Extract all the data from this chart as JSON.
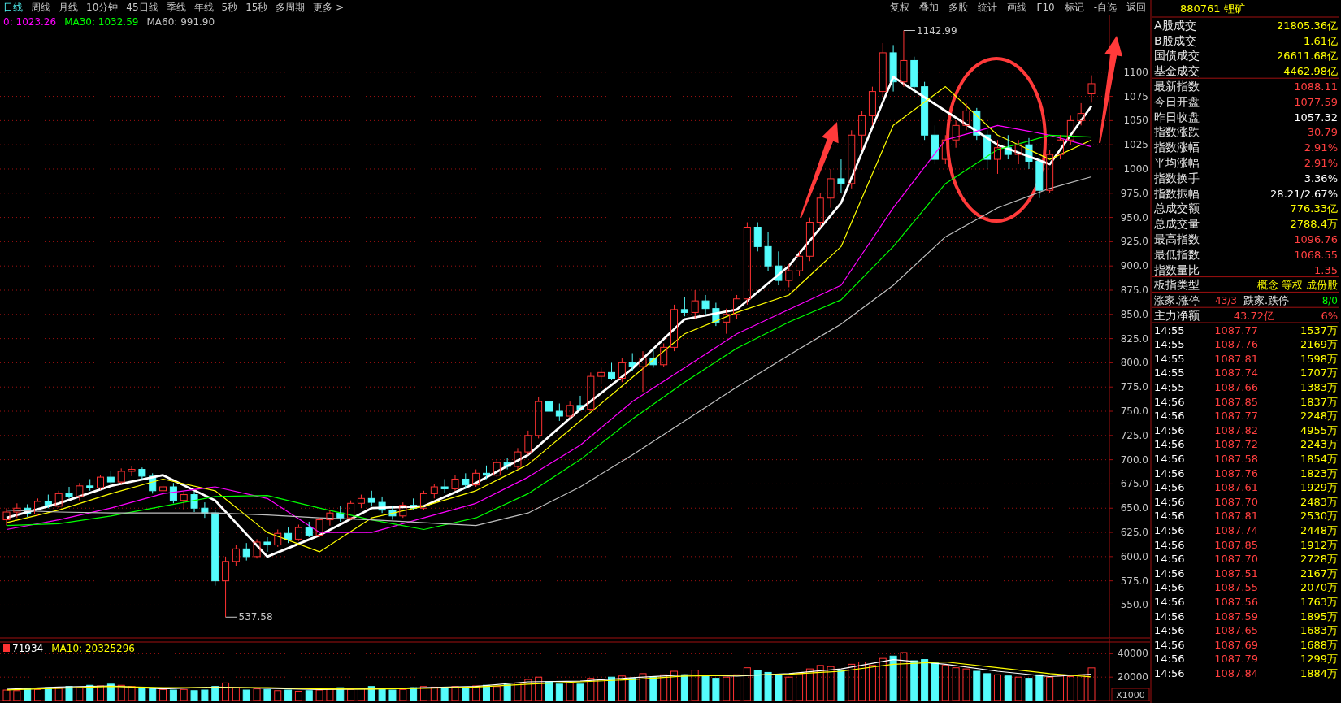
{
  "chart_data": [
    {
      "type": "candlestick",
      "categories": [
        null,
        null,
        null,
        null,
        null,
        null,
        null,
        null,
        null,
        null,
        null,
        null,
        null,
        null,
        null,
        null,
        null,
        null,
        null,
        null,
        null,
        null,
        null,
        null,
        null,
        null,
        null,
        null,
        null,
        null,
        null,
        null,
        null,
        null,
        null,
        null,
        null,
        null,
        null,
        null,
        null,
        null,
        null,
        null,
        null,
        null,
        null,
        null,
        null,
        null,
        null,
        null,
        null,
        null,
        null,
        null,
        null,
        null,
        null,
        null,
        null,
        null,
        null,
        null,
        null,
        null,
        null,
        null,
        null,
        null,
        null,
        null,
        null,
        null,
        null,
        null,
        null,
        null,
        null,
        null,
        null,
        null,
        null,
        null,
        null,
        null,
        null,
        null,
        null,
        null,
        null,
        null,
        null,
        null,
        null,
        null,
        null,
        null,
        null,
        null,
        null,
        null,
        null,
        null,
        null
      ],
      "ohlc": [
        [
          638,
          650,
          632,
          646
        ],
        [
          646,
          655,
          640,
          650
        ],
        [
          650,
          654,
          641,
          644
        ],
        [
          644,
          660,
          642,
          657
        ],
        [
          657,
          664,
          650,
          652
        ],
        [
          652,
          668,
          650,
          665
        ],
        [
          665,
          672,
          660,
          662
        ],
        [
          662,
          676,
          658,
          673
        ],
        [
          673,
          680,
          668,
          671
        ],
        [
          671,
          684,
          669,
          682
        ],
        [
          682,
          688,
          674,
          677
        ],
        [
          677,
          691,
          675,
          688
        ],
        [
          688,
          693,
          683,
          690
        ],
        [
          690,
          692,
          680,
          683
        ],
        [
          683,
          686,
          665,
          668
        ],
        [
          668,
          674,
          662,
          672
        ],
        [
          672,
          676,
          655,
          658
        ],
        [
          658,
          668,
          648,
          664
        ],
        [
          664,
          667,
          646,
          650
        ],
        [
          650,
          656,
          640,
          645
        ],
        [
          645,
          648,
          570,
          575
        ],
        [
          575,
          600,
          537.58,
          595
        ],
        [
          595,
          612,
          590,
          608
        ],
        [
          608,
          614,
          596,
          600
        ],
        [
          600,
          618,
          598,
          615
        ],
        [
          615,
          620,
          605,
          612
        ],
        [
          612,
          628,
          610,
          624
        ],
        [
          624,
          630,
          614,
          618
        ],
        [
          618,
          633,
          616,
          630
        ],
        [
          630,
          636,
          620,
          622
        ],
        [
          622,
          640,
          620,
          638
        ],
        [
          638,
          648,
          632,
          645
        ],
        [
          645,
          652,
          636,
          640
        ],
        [
          640,
          658,
          638,
          655
        ],
        [
          655,
          664,
          650,
          660
        ],
        [
          660,
          668,
          652,
          656
        ],
        [
          656,
          662,
          645,
          648
        ],
        [
          648,
          652,
          638,
          642
        ],
        [
          642,
          656,
          640,
          653
        ],
        [
          653,
          660,
          648,
          650
        ],
        [
          650,
          668,
          648,
          665
        ],
        [
          665,
          675,
          660,
          672
        ],
        [
          672,
          680,
          666,
          670
        ],
        [
          670,
          684,
          668,
          680
        ],
        [
          680,
          686,
          670,
          674
        ],
        [
          674,
          690,
          672,
          686
        ],
        [
          686,
          694,
          680,
          684
        ],
        [
          684,
          700,
          682,
          697
        ],
        [
          697,
          702,
          690,
          693
        ],
        [
          693,
          712,
          690,
          708
        ],
        [
          708,
          730,
          705,
          725
        ],
        [
          725,
          765,
          722,
          760
        ],
        [
          760,
          768,
          745,
          750
        ],
        [
          750,
          758,
          740,
          745
        ],
        [
          745,
          760,
          743,
          756
        ],
        [
          756,
          766,
          750,
          752
        ],
        [
          752,
          790,
          750,
          786
        ],
        [
          786,
          795,
          778,
          790
        ],
        [
          790,
          800,
          782,
          784
        ],
        [
          784,
          805,
          780,
          800
        ],
        [
          800,
          810,
          792,
          796
        ],
        [
          796,
          812,
          770,
          805
        ],
        [
          805,
          815,
          795,
          798
        ],
        [
          798,
          820,
          796,
          816
        ],
        [
          816,
          860,
          812,
          855
        ],
        [
          855,
          868,
          848,
          852
        ],
        [
          852,
          875,
          846,
          864
        ],
        [
          864,
          870,
          850,
          856
        ],
        [
          856,
          862,
          838,
          842
        ],
        [
          842,
          856,
          830,
          850
        ],
        [
          850,
          870,
          845,
          866
        ],
        [
          866,
          945,
          860,
          940
        ],
        [
          940,
          945,
          915,
          920
        ],
        [
          920,
          935,
          895,
          900
        ],
        [
          900,
          915,
          880,
          885
        ],
        [
          885,
          902,
          878,
          895
        ],
        [
          895,
          915,
          890,
          910
        ],
        [
          910,
          950,
          905,
          945
        ],
        [
          945,
          975,
          940,
          970
        ],
        [
          970,
          1000,
          960,
          990
        ],
        [
          990,
          1010,
          975,
          985
        ],
        [
          985,
          1040,
          980,
          1035
        ],
        [
          1035,
          1060,
          1020,
          1055
        ],
        [
          1055,
          1085,
          1045,
          1080
        ],
        [
          1080,
          1130,
          1075,
          1120
        ],
        [
          1120,
          1128,
          1080,
          1090
        ],
        [
          1090,
          1142.99,
          1085,
          1112
        ],
        [
          1112,
          1116,
          1080,
          1085
        ],
        [
          1085,
          1090,
          1030,
          1035
        ],
        [
          1035,
          1045,
          1005,
          1010
        ],
        [
          1010,
          1035,
          1005,
          1030
        ],
        [
          1030,
          1050,
          1022,
          1045
        ],
        [
          1045,
          1068,
          1040,
          1060
        ],
        [
          1060,
          1063,
          1030,
          1035
        ],
        [
          1035,
          1040,
          1000,
          1010
        ],
        [
          1010,
          1030,
          995,
          1022
        ],
        [
          1022,
          1035,
          1010,
          1015
        ],
        [
          1015,
          1030,
          1005,
          1025
        ],
        [
          1025,
          1032,
          1000,
          1008
        ],
        [
          1008,
          1012,
          970,
          978
        ],
        [
          978,
          1020,
          975,
          1015
        ],
        [
          1015,
          1035,
          1010,
          1030
        ],
        [
          1030,
          1055,
          1025,
          1050
        ],
        [
          1050,
          1068,
          1045,
          1057.32
        ],
        [
          1077.59,
          1096.76,
          1068.55,
          1088.11
        ]
      ],
      "series": [
        {
          "type": "line",
          "color": "#ffffff",
          "values": [
            640,
            null,
            null,
            null,
            null,
            655,
            null,
            null,
            null,
            null,
            673,
            null,
            null,
            null,
            null,
            684,
            null,
            null,
            null,
            null,
            658,
            null,
            null,
            null,
            null,
            600,
            null,
            null,
            null,
            null,
            622,
            null,
            null,
            null,
            null,
            650,
            null,
            null,
            null,
            null,
            652,
            null,
            null,
            null,
            null,
            676,
            null,
            null,
            null,
            null,
            705,
            null,
            null,
            null,
            null,
            752,
            null,
            null,
            null,
            null,
            794,
            null,
            null,
            null,
            null,
            845,
            null,
            null,
            null,
            null,
            855,
            null,
            null,
            null,
            null,
            900,
            null,
            null,
            null,
            null,
            965,
            null,
            null,
            null,
            null,
            1095,
            null,
            null,
            null,
            null,
            1060,
            null,
            null,
            null,
            null,
            1025,
            null,
            null,
            null,
            null,
            1005,
            null,
            null,
            null,
            1065
          ]
        },
        {
          "type": "line",
          "color": "#ffff00",
          "values": [
            635,
            null,
            null,
            null,
            null,
            648,
            null,
            null,
            null,
            null,
            665,
            null,
            null,
            null,
            null,
            680,
            null,
            null,
            null,
            null,
            668,
            null,
            null,
            null,
            null,
            625,
            null,
            null,
            null,
            null,
            605,
            null,
            null,
            null,
            null,
            640,
            null,
            null,
            null,
            null,
            652,
            null,
            null,
            null,
            null,
            668,
            null,
            null,
            null,
            null,
            695,
            null,
            null,
            null,
            null,
            740,
            null,
            null,
            null,
            null,
            785,
            null,
            null,
            null,
            null,
            830,
            null,
            null,
            null,
            null,
            852,
            null,
            null,
            null,
            null,
            870,
            null,
            null,
            null,
            null,
            920,
            null,
            null,
            null,
            null,
            1045,
            null,
            null,
            null,
            null,
            1085,
            null,
            null,
            null,
            null,
            1035,
            null,
            null,
            null,
            null,
            1010,
            null,
            null,
            null,
            1030
          ]
        },
        {
          "type": "line",
          "name": "0: 1023.26",
          "color": "#ff00ff",
          "values": [
            628,
            null,
            null,
            null,
            null,
            638,
            null,
            null,
            null,
            null,
            650,
            null,
            null,
            null,
            null,
            665,
            null,
            null,
            null,
            null,
            672,
            null,
            null,
            null,
            null,
            660,
            null,
            null,
            null,
            null,
            625,
            null,
            null,
            null,
            null,
            625,
            null,
            null,
            null,
            null,
            640,
            null,
            null,
            null,
            null,
            655,
            null,
            null,
            null,
            null,
            682,
            null,
            null,
            null,
            null,
            715,
            null,
            null,
            null,
            null,
            760,
            null,
            null,
            null,
            null,
            795,
            null,
            null,
            null,
            null,
            830,
            null,
            null,
            null,
            null,
            855,
            null,
            null,
            null,
            null,
            880,
            null,
            null,
            null,
            null,
            960,
            null,
            null,
            null,
            null,
            1030,
            null,
            null,
            null,
            null,
            1045,
            null,
            null,
            null,
            null,
            1035,
            null,
            null,
            null,
            1023
          ]
        },
        {
          "type": "line",
          "name": "MA30: 1032.59",
          "color": "#00ff00",
          "values": [
            632,
            null,
            null,
            null,
            null,
            634,
            null,
            null,
            null,
            null,
            642,
            null,
            null,
            null,
            null,
            652,
            null,
            null,
            null,
            null,
            662,
            null,
            null,
            null,
            null,
            663,
            null,
            null,
            null,
            null,
            650,
            null,
            null,
            null,
            null,
            638,
            null,
            null,
            null,
            null,
            628,
            null,
            null,
            null,
            null,
            640,
            null,
            null,
            null,
            null,
            665,
            null,
            null,
            null,
            null,
            700,
            null,
            null,
            null,
            null,
            742,
            null,
            null,
            null,
            null,
            780,
            null,
            null,
            null,
            null,
            815,
            null,
            null,
            null,
            null,
            842,
            null,
            null,
            null,
            null,
            865,
            null,
            null,
            null,
            null,
            920,
            null,
            null,
            null,
            null,
            985,
            null,
            null,
            null,
            null,
            1020,
            null,
            null,
            null,
            null,
            1035,
            null,
            null,
            null,
            1033
          ]
        },
        {
          "type": "line",
          "name": "MA60: 991.90",
          "color": "#c0c0c0",
          "values": [
            648,
            null,
            null,
            null,
            null,
            646,
            null,
            null,
            null,
            null,
            645,
            null,
            null,
            null,
            null,
            645,
            null,
            null,
            null,
            null,
            645,
            null,
            null,
            null,
            null,
            643,
            null,
            null,
            null,
            null,
            640,
            null,
            null,
            null,
            null,
            638,
            null,
            null,
            null,
            null,
            635,
            null,
            null,
            null,
            null,
            632,
            null,
            null,
            null,
            null,
            645,
            null,
            null,
            null,
            null,
            672,
            null,
            null,
            null,
            null,
            705,
            null,
            null,
            null,
            null,
            740,
            null,
            null,
            null,
            null,
            775,
            null,
            null,
            null,
            null,
            808,
            null,
            null,
            null,
            null,
            840,
            null,
            null,
            null,
            null,
            880,
            null,
            null,
            null,
            null,
            930,
            null,
            null,
            null,
            null,
            960,
            null,
            null,
            null,
            null,
            980,
            null,
            null,
            null,
            992
          ]
        }
      ],
      "ylim": [
        516,
        1156
      ],
      "yticks": [
        {
          "value": 550,
          "label": "550.0"
        },
        {
          "value": 575,
          "label": "575.0"
        },
        {
          "value": 600,
          "label": "600.0"
        },
        {
          "value": 625,
          "label": "625.0"
        },
        {
          "value": 650,
          "label": "650.0"
        },
        {
          "value": 675,
          "label": "675.0"
        },
        {
          "value": 700,
          "label": "700.0"
        },
        {
          "value": 725,
          "label": "725.0"
        },
        {
          "value": 750,
          "label": "750.0"
        },
        {
          "value": 775,
          "label": "775.0"
        },
        {
          "value": 800,
          "label": "800.0"
        },
        {
          "value": 825,
          "label": "825.0"
        },
        {
          "value": 850,
          "label": "850.0"
        },
        {
          "value": 875,
          "label": "875.0"
        },
        {
          "value": 900,
          "label": "900.0"
        },
        {
          "value": 925,
          "label": "925.0"
        },
        {
          "value": 950,
          "label": "950.0"
        },
        {
          "value": 975,
          "label": "975.0"
        },
        1000,
        1025,
        1050,
        1075,
        1100
      ],
      "grid": "y",
      "legend": "top left",
      "annotations": [
        "日线",
        "周线",
        "月线",
        "10分钟",
        "45日线",
        "季线",
        "年线",
        "5秒",
        "15秒",
        "多周期",
        "更多 >",
        "复权",
        "叠加",
        "多股",
        "统计",
        "画线",
        "F10",
        "标记",
        "-自选",
        "返回",
        "1142.99",
        "537.58"
      ]
    },
    {
      "type": "bar",
      "categories": [
        null,
        null,
        null,
        null,
        null,
        null,
        null,
        null,
        null,
        null,
        null,
        null,
        null,
        null,
        null,
        null,
        null,
        null,
        null,
        null,
        null,
        null,
        null,
        null,
        null,
        null,
        null,
        null,
        null,
        null,
        null,
        null,
        null,
        null,
        null,
        null,
        null,
        null,
        null,
        null,
        null,
        null,
        null,
        null,
        null,
        null,
        null,
        null,
        null,
        null,
        null,
        null,
        null,
        null,
        null,
        null,
        null,
        null,
        null,
        null,
        null,
        null,
        null,
        null,
        null,
        null,
        null,
        null,
        null,
        null,
        null,
        null,
        null,
        null,
        null,
        null,
        null,
        null,
        null,
        null,
        null,
        null,
        null,
        null,
        null,
        null,
        null,
        null,
        null,
        null,
        null,
        null,
        null,
        null,
        null,
        null,
        null,
        null,
        null,
        null,
        null,
        null,
        null,
        null,
        null
      ],
      "series": [
        {
          "type": "bar",
          "name": "71934",
          "values": [
            9000,
            8500,
            10000,
            9500,
            11000,
            10500,
            12000,
            11000,
            13000,
            12500,
            14000,
            13000,
            12000,
            11000,
            10000,
            9500,
            9000,
            9500,
            8500,
            9000,
            12000,
            15000,
            11000,
            9000,
            10000,
            9500,
            8500,
            9000,
            8000,
            8500,
            9000,
            10000,
            11000,
            9500,
            10500,
            12000,
            10000,
            9000,
            9500,
            11000,
            12000,
            11500,
            10500,
            12000,
            11000,
            12500,
            13000,
            12000,
            13500,
            15000,
            18000,
            20000,
            16000,
            14000,
            15000,
            14000,
            19000,
            18000,
            20000,
            21000,
            19000,
            23000,
            20000,
            22000,
            25000,
            22000,
            26000,
            21000,
            19000,
            20000,
            22000,
            28000,
            26000,
            24000,
            22000,
            20000,
            23000,
            27000,
            30000,
            29000,
            26000,
            31000,
            33000,
            30000,
            36000,
            38000,
            41000,
            34000,
            35000,
            32000,
            30000,
            28000,
            27000,
            25000,
            23000,
            22000,
            21000,
            20000,
            19000,
            22000,
            20000,
            21000,
            20500,
            22000,
            27900
          ],
          "colors": [
            "#ff3232",
            "#ff3232",
            "#54fcfc",
            "#ff3232",
            "#54fcfc",
            "#ff3232",
            "#54fcfc",
            "#ff3232",
            "#54fcfc",
            "#ff3232",
            "#54fcfc",
            "#ff3232",
            "#ff3232",
            "#54fcfc",
            "#54fcfc",
            "#ff3232",
            "#54fcfc",
            "#ff3232",
            "#54fcfc",
            "#54fcfc",
            "#54fcfc",
            "#ff3232",
            "#ff3232",
            "#54fcfc",
            "#ff3232",
            "#54fcfc",
            "#ff3232",
            "#54fcfc",
            "#ff3232",
            "#54fcfc",
            "#ff3232",
            "#ff3232",
            "#54fcfc",
            "#ff3232",
            "#ff3232",
            "#54fcfc",
            "#54fcfc",
            "#54fcfc",
            "#ff3232",
            "#54fcfc",
            "#ff3232",
            "#ff3232",
            "#54fcfc",
            "#ff3232",
            "#54fcfc",
            "#ff3232",
            "#54fcfc",
            "#ff3232",
            "#54fcfc",
            "#ff3232",
            "#ff3232",
            "#ff3232",
            "#54fcfc",
            "#54fcfc",
            "#ff3232",
            "#54fcfc",
            "#ff3232",
            "#ff3232",
            "#54fcfc",
            "#ff3232",
            "#54fcfc",
            "#ff3232",
            "#54fcfc",
            "#ff3232",
            "#ff3232",
            "#54fcfc",
            "#ff3232",
            "#54fcfc",
            "#54fcfc",
            "#ff3232",
            "#ff3232",
            "#ff3232",
            "#54fcfc",
            "#54fcfc",
            "#54fcfc",
            "#ff3232",
            "#ff3232",
            "#ff3232",
            "#ff3232",
            "#ff3232",
            "#54fcfc",
            "#ff3232",
            "#ff3232",
            "#ff3232",
            "#ff3232",
            "#54fcfc",
            "#ff3232",
            "#54fcfc",
            "#54fcfc",
            "#54fcfc",
            "#ff3232",
            "#ff3232",
            "#ff3232",
            "#54fcfc",
            "#54fcfc",
            "#ff3232",
            "#54fcfc",
            "#ff3232",
            "#54fcfc",
            "#54fcfc",
            "#ff3232",
            "#ff3232",
            "#ff3232",
            "#ff3232",
            "#ff3232"
          ]
        },
        {
          "type": "line",
          "color": "#ffffff",
          "values": [
            9600,
            null,
            null,
            null,
            null,
            11500,
            null,
            null,
            null,
            null,
            12500,
            null,
            null,
            null,
            null,
            10000,
            null,
            null,
            null,
            null,
            11500,
            null,
            null,
            null,
            null,
            10500,
            null,
            null,
            null,
            null,
            9500,
            null,
            null,
            null,
            null,
            10000,
            null,
            null,
            null,
            null,
            11000,
            null,
            null,
            null,
            null,
            12000,
            null,
            null,
            null,
            null,
            16000,
            null,
            null,
            null,
            null,
            16500,
            null,
            null,
            null,
            null,
            19500,
            null,
            null,
            null,
            null,
            22000,
            null,
            null,
            null,
            null,
            21000,
            null,
            null,
            null,
            null,
            23000,
            null,
            null,
            null,
            null,
            27000,
            null,
            null,
            null,
            null,
            35000,
            null,
            null,
            null,
            null,
            31000,
            null,
            null,
            null,
            null,
            25000,
            null,
            null,
            null,
            null,
            20500,
            null,
            null,
            null,
            22500
          ]
        },
        {
          "type": "line",
          "name": "MA10: 20325296",
          "color": "#ffff00",
          "values": [
            9200,
            null,
            null,
            null,
            null,
            10500,
            null,
            null,
            null,
            null,
            12000,
            null,
            null,
            null,
            null,
            11000,
            null,
            null,
            null,
            null,
            11000,
            null,
            null,
            null,
            null,
            11000,
            null,
            null,
            null,
            null,
            10000,
            null,
            null,
            null,
            null,
            9800,
            null,
            null,
            null,
            null,
            10500,
            null,
            null,
            null,
            null,
            11500,
            null,
            null,
            null,
            null,
            14000,
            null,
            null,
            null,
            null,
            16000,
            null,
            null,
            null,
            null,
            18000,
            null,
            null,
            null,
            null,
            21000,
            null,
            null,
            null,
            null,
            21500,
            null,
            null,
            null,
            null,
            22500,
            null,
            null,
            null,
            null,
            25000,
            null,
            null,
            null,
            null,
            31000,
            null,
            null,
            null,
            null,
            33000,
            null,
            null,
            null,
            null,
            28000,
            null,
            null,
            null,
            null,
            23000,
            null,
            null,
            null,
            20300
          ]
        }
      ],
      "ylim": [
        0,
        50000
      ],
      "yticks": [
        20000,
        40000
      ],
      "grid": "y",
      "legend": "top left",
      "annotations": [
        "X1000"
      ]
    },
    {
      "type": "other",
      "title": "880761 锂矿",
      "annotations": [
        "A股成交  21805.36亿",
        "B股成交  1.61亿",
        "国债成交  26611.68亿",
        "基金成交  4462.98亿",
        "最新指数  1088.11",
        "今日开盘  1077.59",
        "昨日收盘  1057.32",
        "指数涨跌  30.79",
        "指数涨幅  2.91%",
        "平均涨幅  2.91%",
        "指数换手  3.36%",
        "指数振幅  28.21/2.67%",
        "总成交额  776.33亿",
        "总成交量  2788.4万",
        "最高指数  1096.76",
        "最低指数  1068.55",
        "指数量比  1.35",
        "板指类型  概念 等权 成份股",
        "涨家.涨停  43/3  跌家.跌停  8/0",
        "主力净额  43.72亿  6%",
        "14:55  1087.77  1537万",
        "14:55  1087.76  2169万",
        "14:55  1087.81  1598万",
        "14:55  1087.74  1707万",
        "14:55  1087.66  1383万",
        "14:56  1087.85  1837万",
        "14:56  1087.77  2248万",
        "14:56  1087.82  4955万",
        "14:56  1087.72  2243万",
        "14:56  1087.58  1854万",
        "14:56  1087.76  1823万",
        "14:56  1087.61  1929万",
        "14:56  1087.70  2483万",
        "14:56  1087.81  2530万",
        "14:56  1087.74  2448万",
        "14:56  1087.85  1912万",
        "14:56  1087.70  2728万",
        "14:56  1087.51  2167万",
        "14:56  1087.55  2070万",
        "14:56  1087.56  1763万",
        "14:56  1087.59  1895万",
        "14:56  1087.65  1683万",
        "14:56  1087.69  1688万",
        "14:56  1087.79  1299万",
        "14:56  1087.84  1884万"
      ]
    }
  ]
}
